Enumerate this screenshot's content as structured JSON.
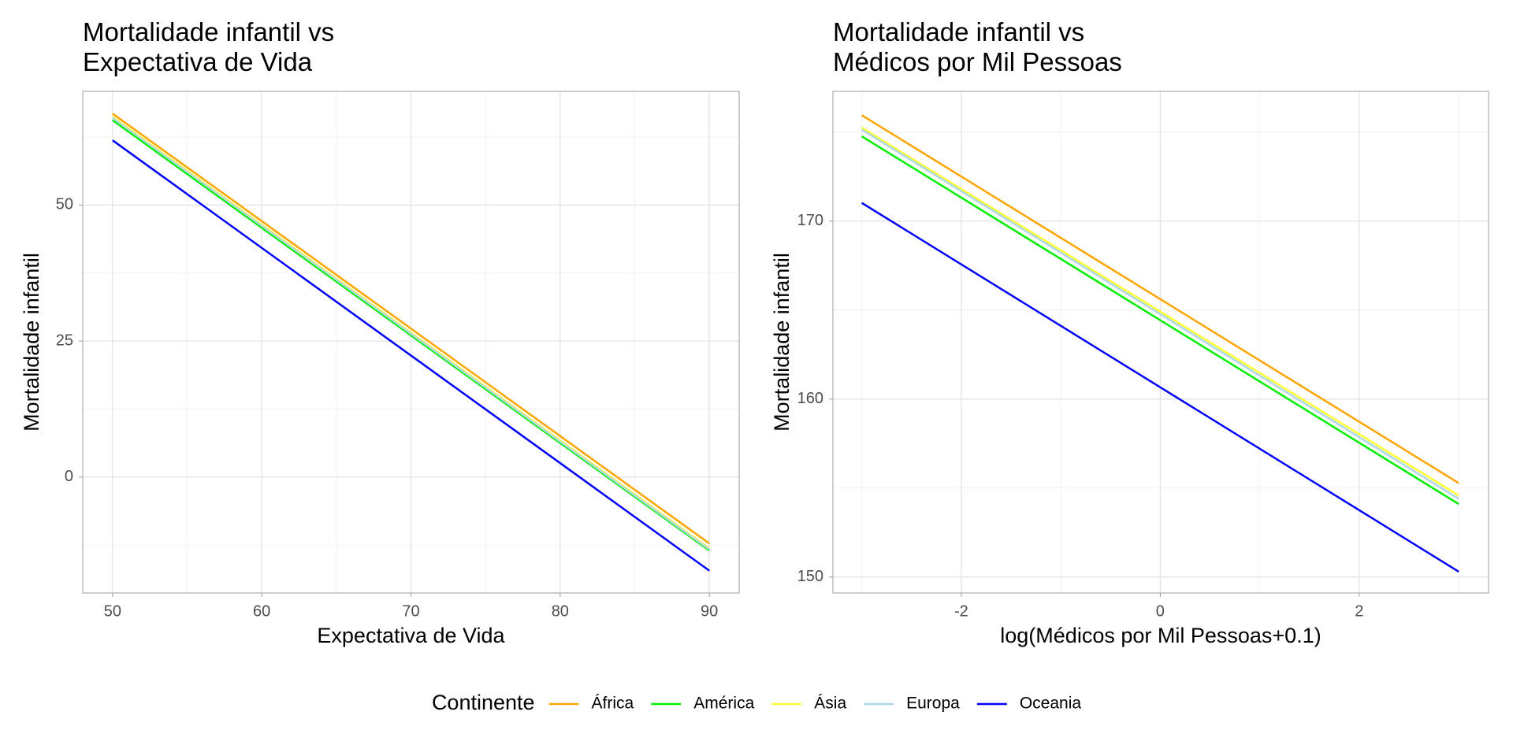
{
  "chart_data": [
    {
      "type": "line",
      "title": "Mortalidade infantil vs\nExpectativa de Vida",
      "x_label": "Expectativa de Vida",
      "y_label": "Mortalidade infantil",
      "x": [
        50,
        90
      ],
      "xlim": [
        48,
        92
      ],
      "xticks": [
        50,
        60,
        70,
        80,
        90
      ],
      "ylim": [
        -21.3,
        70.9
      ],
      "yticks": [
        0,
        25,
        50
      ],
      "grid": true,
      "series": [
        {
          "name": "África",
          "color": "#ffa500",
          "values": [
            66.8,
            -12.2
          ]
        },
        {
          "name": "América",
          "color": "#00ee00",
          "values": [
            65.6,
            -13.5
          ]
        },
        {
          "name": "Ásia",
          "color": "#ffff33",
          "values": [
            66.2,
            -13.1
          ]
        },
        {
          "name": "Europa",
          "color": "#add8e6",
          "values": [
            66.0,
            -13.3
          ]
        },
        {
          "name": "Oceania",
          "color": "#0000ff",
          "values": [
            61.9,
            -17.2
          ]
        }
      ]
    },
    {
      "type": "line",
      "title": "Mortalidade infantil vs\nMédicos por Mil Pessoas",
      "x_label": "log(Médicos por Mil Pessoas+0.1)",
      "y_label": "Mortalidade infantil",
      "x": [
        -3,
        3
      ],
      "xlim": [
        -3.29,
        3.3
      ],
      "xticks": [
        -2,
        0,
        2
      ],
      "ylim": [
        149.1,
        177.3
      ],
      "yticks": [
        150,
        160,
        170
      ],
      "grid": true,
      "series": [
        {
          "name": "África",
          "color": "#ffa500",
          "values": [
            175.96,
            155.28
          ]
        },
        {
          "name": "América",
          "color": "#00ee00",
          "values": [
            174.77,
            154.1
          ]
        },
        {
          "name": "Ásia",
          "color": "#ffff33",
          "values": [
            175.26,
            154.58
          ]
        },
        {
          "name": "Europa",
          "color": "#add8e6",
          "values": [
            175.15,
            154.4
          ]
        },
        {
          "name": "Oceania",
          "color": "#0000ff",
          "values": [
            171.03,
            150.3
          ]
        }
      ]
    }
  ],
  "legend": {
    "title": "Continente",
    "position": "bottom"
  }
}
